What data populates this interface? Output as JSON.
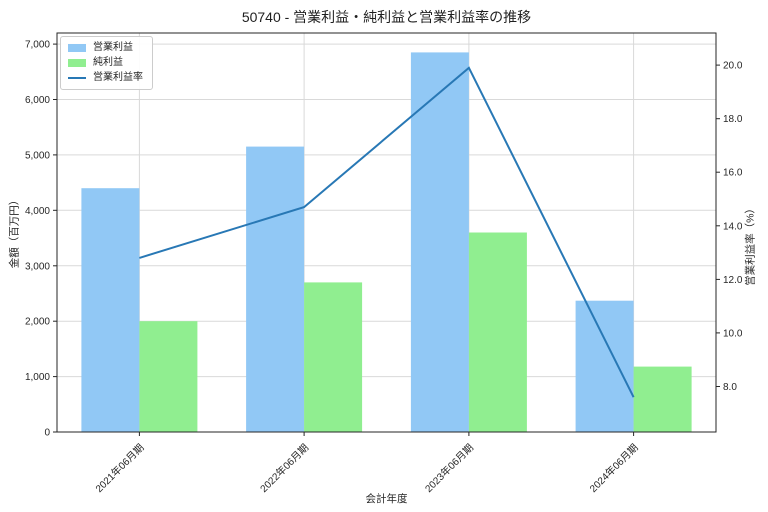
{
  "title": "50740 - 営業利益・純利益と営業利益率の推移",
  "chart_data": {
    "type": "bar",
    "subtype": "grouped-bars-with-line",
    "categories": [
      "2021年06月期",
      "2022年06月期",
      "2023年06月期",
      "2024年06月期"
    ],
    "series": [
      {
        "name": "営業利益",
        "type": "bar",
        "axis": "left",
        "color": "#91c8f5",
        "values": [
          4400,
          5150,
          6850,
          2370
        ]
      },
      {
        "name": "純利益",
        "type": "bar",
        "axis": "left",
        "color": "#90ee90",
        "values": [
          2000,
          2700,
          3600,
          1180
        ]
      },
      {
        "name": "営業利益率",
        "type": "line",
        "axis": "right",
        "color": "#2878b5",
        "values": [
          12.8,
          14.7,
          19.9,
          7.6
        ]
      }
    ],
    "xlabel": "会計年度",
    "ylabel_left": "金額（百万円）",
    "ylabel_right": "営業利益率（%）",
    "ylim_left": [
      0,
      7200
    ],
    "ylim_right": [
      6.3,
      21.2
    ],
    "yticks_left_values": [
      0,
      1000,
      2000,
      3000,
      4000,
      5000,
      6000,
      7000
    ],
    "yticks_left_labels": [
      "0",
      "1,000",
      "2,000",
      "3,000",
      "4,000",
      "5,000",
      "6,000",
      "7,000"
    ],
    "yticks_right_values": [
      8,
      10,
      12,
      14,
      16,
      18,
      20
    ],
    "yticks_right_labels": [
      "8.0",
      "10.0",
      "12.0",
      "14.0",
      "16.0",
      "18.0",
      "20.0"
    ],
    "grid": true,
    "grid_color": "#d9d9d9",
    "border_color": "#262626",
    "legend_position": "upper left"
  }
}
